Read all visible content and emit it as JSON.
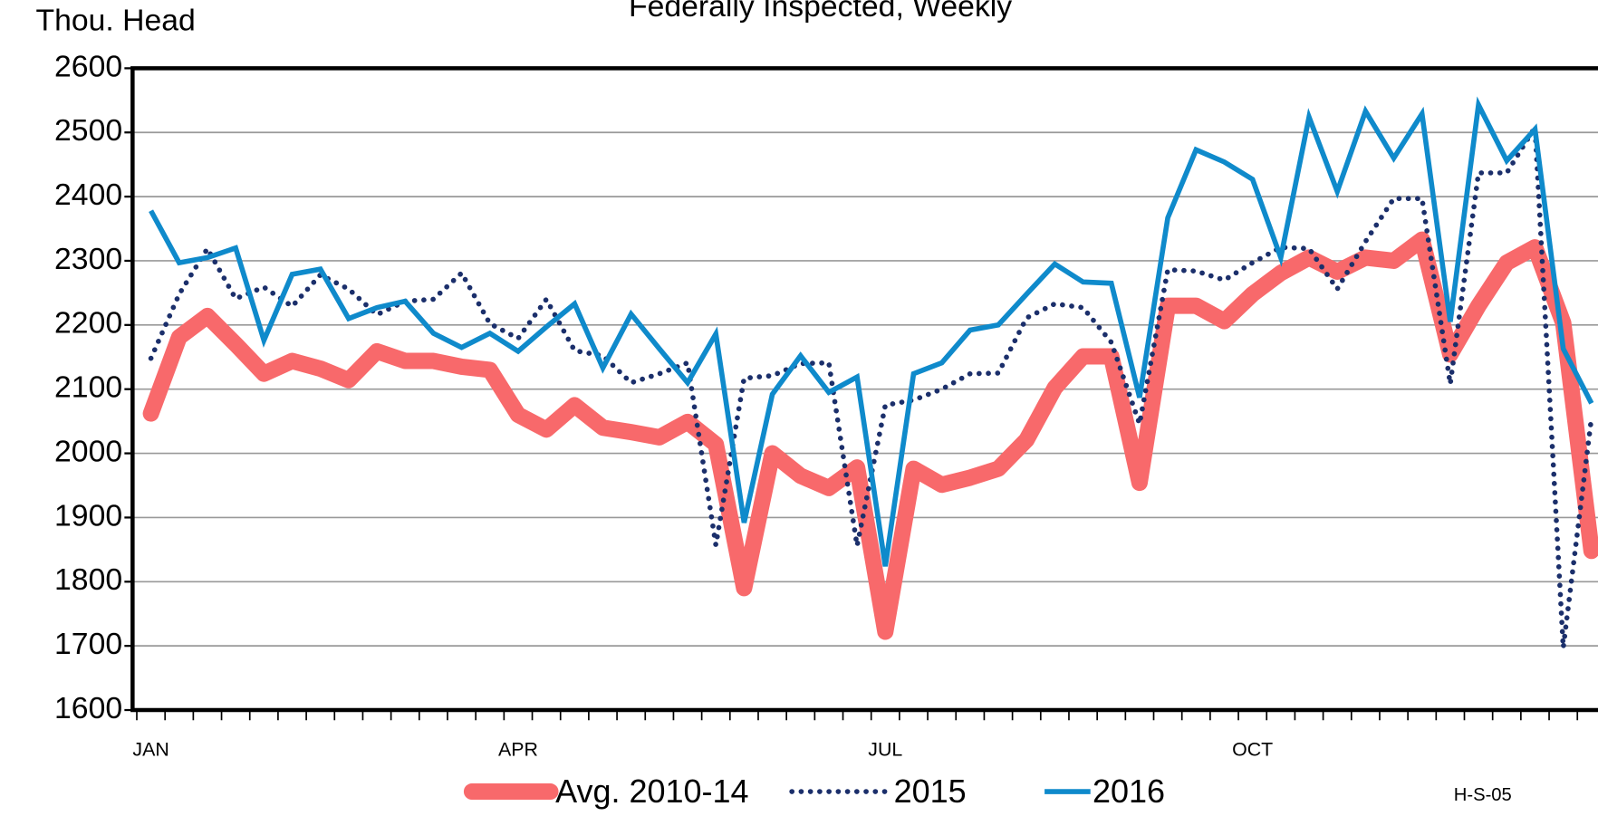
{
  "chart_data": {
    "type": "line",
    "title": "Federally Inspected, Weekly",
    "y_label": "Thou. Head",
    "note": "H-S-05",
    "categories": [
      "JAN",
      null,
      null,
      null,
      null,
      null,
      null,
      null,
      null,
      null,
      null,
      null,
      null,
      "APR",
      null,
      null,
      null,
      null,
      null,
      null,
      null,
      null,
      null,
      null,
      null,
      null,
      "JUL",
      null,
      null,
      null,
      null,
      null,
      null,
      null,
      null,
      null,
      null,
      null,
      null,
      "OCT",
      null,
      null,
      null,
      null,
      null,
      null,
      null,
      null,
      null,
      null,
      null,
      null
    ],
    "ylim": [
      1600,
      2600
    ],
    "yticks": [
      1600,
      1700,
      1800,
      1900,
      2000,
      2100,
      2200,
      2300,
      2400,
      2500,
      2600
    ],
    "grid": true,
    "legend": "bottom",
    "series": [
      {
        "name": "Avg. 2010-14",
        "color": "#f8696b",
        "style": "solid-thick",
        "values": [
          2062,
          2181,
          2214,
          2170,
          2124,
          2144,
          2132,
          2114,
          2159,
          2144,
          2144,
          2135,
          2130,
          2060,
          2037,
          2075,
          2040,
          2033,
          2025,
          2049,
          2014,
          1790,
          2000,
          1965,
          1946,
          1978,
          1722,
          1976,
          1951,
          1962,
          1976,
          2021,
          2102,
          2151,
          2151,
          1954,
          2230,
          2230,
          2206,
          2248,
          2281,
          2305,
          2283,
          2305,
          2300,
          2333,
          2154,
          2230,
          2297,
          2321,
          2203,
          1848
        ]
      },
      {
        "name": "2015",
        "color": "#1b2f6b",
        "style": "dotted",
        "values": [
          2148,
          2248,
          2319,
          2241,
          2259,
          2229,
          2278,
          2256,
          2216,
          2237,
          2240,
          2281,
          2202,
          2179,
          2240,
          2160,
          2152,
          2110,
          2124,
          2141,
          1857,
          2117,
          2121,
          2140,
          2141,
          1856,
          2075,
          2083,
          2100,
          2124,
          2125,
          2211,
          2233,
          2227,
          2173,
          2046,
          2286,
          2284,
          2270,
          2297,
          2321,
          2319,
          2256,
          2330,
          2397,
          2397,
          2108,
          2437,
          2437,
          2508,
          1697,
          2056
        ]
      },
      {
        "name": "2016",
        "color": "#0f8acb",
        "style": "solid",
        "values": [
          2378,
          2297,
          2305,
          2320,
          2176,
          2279,
          2287,
          2210,
          2227,
          2237,
          2187,
          2165,
          2187,
          2159,
          2197,
          2233,
          2133,
          2217,
          2163,
          2110,
          2186,
          1892,
          2092,
          2152,
          2095,
          2119,
          1824,
          2124,
          2141,
          2192,
          2200,
          2248,
          2295,
          2267,
          2265,
          2087,
          2367,
          2473,
          2454,
          2427,
          2305,
          2524,
          2408,
          2533,
          2460,
          2529,
          2205,
          2543,
          2456,
          2505,
          2163,
          2078
        ]
      }
    ]
  }
}
